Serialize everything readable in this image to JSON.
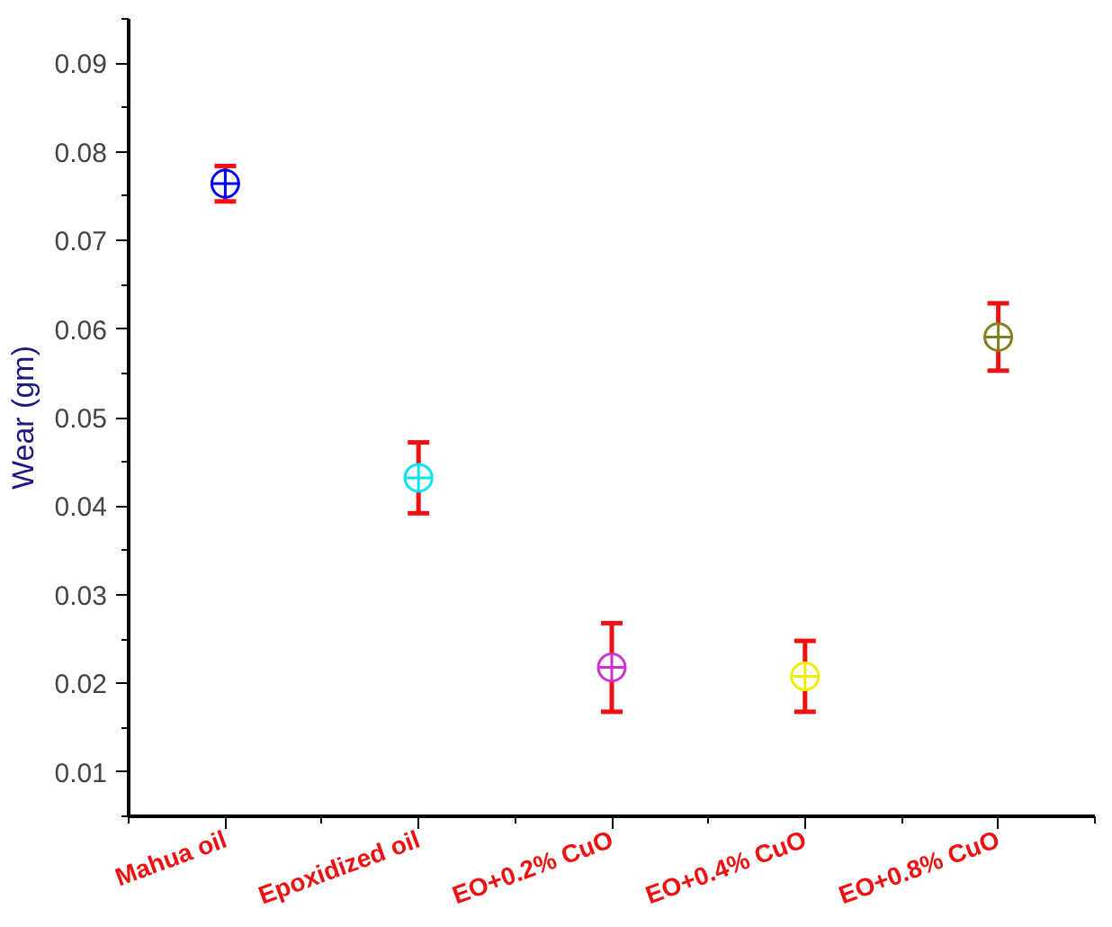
{
  "chart_data": {
    "type": "scatter",
    "ylabel": "Wear (gm)",
    "categories": [
      "Mahua oil",
      "Epoxidized oil",
      "EO+0.2% CuO",
      "EO+0.4% CuO",
      "EO+0.8% CuO"
    ],
    "values": [
      0.0764,
      0.0432,
      0.0218,
      0.0208,
      0.0591
    ],
    "errors": [
      0.002,
      0.004,
      0.005,
      0.004,
      0.0038
    ],
    "colors": [
      "#0000ff",
      "#00e5ee",
      "#cc33cc",
      "#eeee00",
      "#808020"
    ],
    "ylim": [
      0.005,
      0.095
    ],
    "yticks": [
      0.01,
      0.02,
      0.03,
      0.04,
      0.05,
      0.06,
      0.07,
      0.08,
      0.09
    ],
    "marker": "circle",
    "grid": false
  }
}
